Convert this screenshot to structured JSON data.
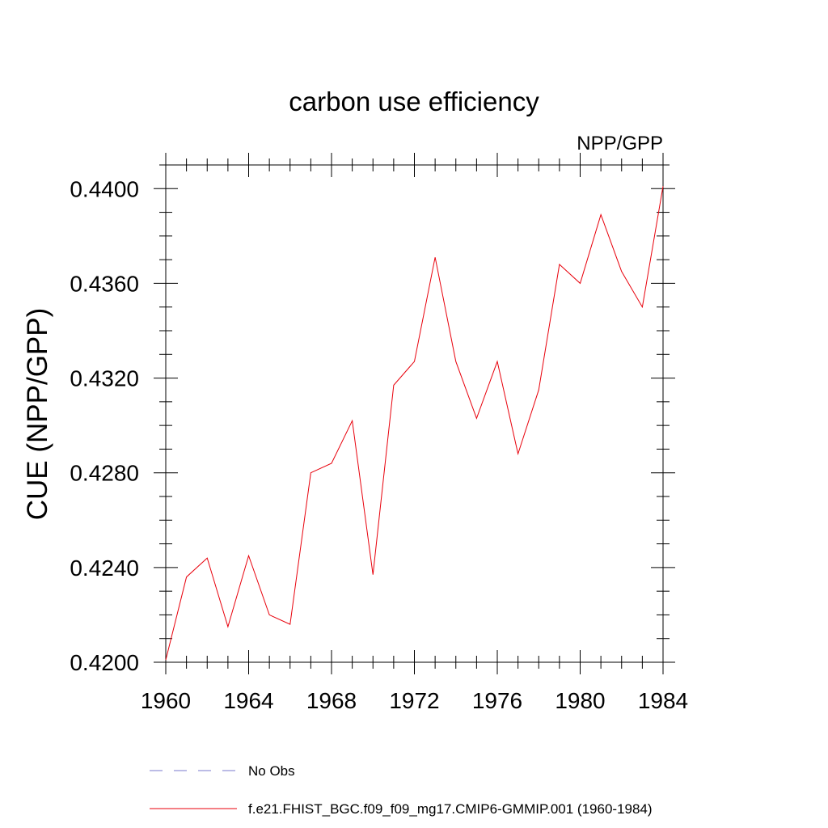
{
  "chart_data": {
    "type": "line",
    "title": "carbon use efficiency",
    "subtitle": "NPP/GPP",
    "xlabel": "",
    "ylabel": "CUE  (NPP/GPP)",
    "xlim": [
      1960,
      1984
    ],
    "ylim": [
      0.42,
      0.441
    ],
    "x_ticks": [
      1960,
      1964,
      1968,
      1972,
      1976,
      1980,
      1984
    ],
    "x_tick_labels": [
      "1960",
      "1964",
      "1968",
      "1972",
      "1976",
      "1980",
      "1984"
    ],
    "x_minor_step": 1,
    "y_ticks": [
      0.42,
      0.424,
      0.428,
      0.432,
      0.436,
      0.44
    ],
    "y_tick_labels": [
      "0.4200",
      "0.4240",
      "0.4280",
      "0.4320",
      "0.4360",
      "0.4400"
    ],
    "y_minor_step": 0.001,
    "grid": false,
    "series": [
      {
        "name": "f.e21.FHIST_BGC.f09_f09_mg17.CMIP6-GMMIP.001 (1960-1984)",
        "color": "#e8000b",
        "style": "solid",
        "x": [
          1960,
          1961,
          1962,
          1963,
          1964,
          1965,
          1966,
          1967,
          1968,
          1969,
          1970,
          1971,
          1972,
          1973,
          1974,
          1975,
          1976,
          1977,
          1978,
          1979,
          1980,
          1981,
          1982,
          1983,
          1984
        ],
        "values": [
          0.4201,
          0.4236,
          0.4244,
          0.4215,
          0.4245,
          0.422,
          0.4216,
          0.428,
          0.4284,
          0.4302,
          0.4237,
          0.4317,
          0.4327,
          0.4371,
          0.4327,
          0.4303,
          0.4327,
          0.4288,
          0.4315,
          0.4368,
          0.436,
          0.4389,
          0.4365,
          0.435,
          0.4401
        ]
      }
    ],
    "legend": {
      "placement": "bottom",
      "entries": [
        {
          "label": "No Obs",
          "color": "#7a7acc",
          "style": "dashed"
        },
        {
          "label": "f.e21.FHIST_BGC.f09_f09_mg17.CMIP6-GMMIP.001 (1960-1984)",
          "color": "#e8000b",
          "style": "solid"
        }
      ]
    }
  }
}
